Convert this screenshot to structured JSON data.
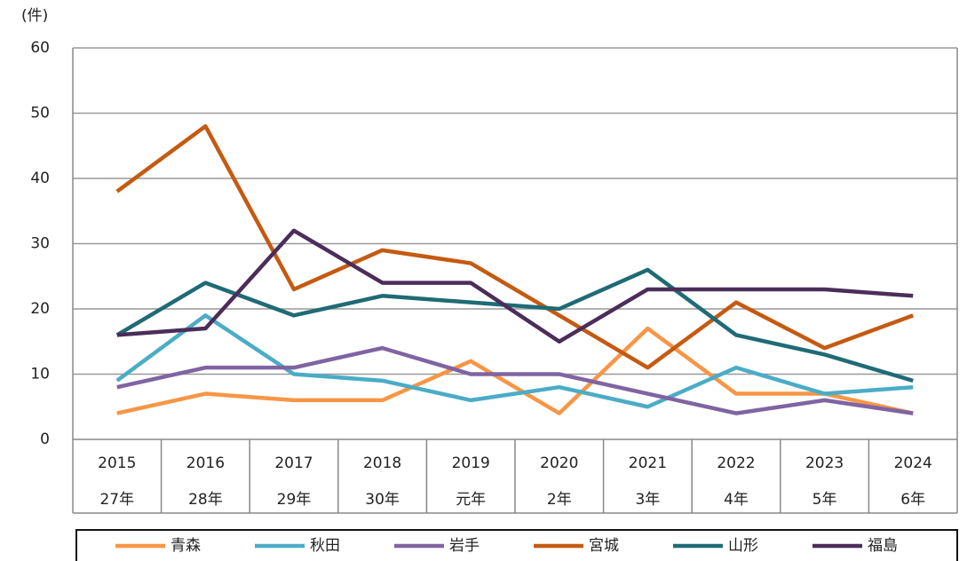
{
  "chart_data": {
    "type": "line",
    "y_unit_label": "(件)",
    "categories": [
      [
        "2015",
        "27年"
      ],
      [
        "2016",
        "28年"
      ],
      [
        "2017",
        "29年"
      ],
      [
        "2018",
        "30年"
      ],
      [
        "2019",
        "元年"
      ],
      [
        "2020",
        "2年"
      ],
      [
        "2021",
        "3年"
      ],
      [
        "2022",
        "4年"
      ],
      [
        "2023",
        "5年"
      ],
      [
        "2024",
        "6年"
      ]
    ],
    "series": [
      {
        "name": "青森",
        "color": "#f79646",
        "values": [
          4,
          7,
          6,
          6,
          12,
          4,
          17,
          7,
          7,
          4
        ]
      },
      {
        "name": "秋田",
        "color": "#4bacc6",
        "values": [
          9,
          19,
          10,
          9,
          6,
          8,
          5,
          11,
          7,
          8
        ]
      },
      {
        "name": "岩手",
        "color": "#8064a2",
        "values": [
          8,
          11,
          11,
          14,
          10,
          10,
          7,
          4,
          6,
          4
        ]
      },
      {
        "name": "宮城",
        "color": "#c55a11",
        "values": [
          38,
          48,
          23,
          29,
          27,
          19,
          11,
          21,
          14,
          19
        ]
      },
      {
        "name": "山形",
        "color": "#1f6b75",
        "values": [
          16,
          24,
          19,
          22,
          21,
          20,
          26,
          16,
          13,
          9
        ]
      },
      {
        "name": "福島",
        "color": "#4b2d5a",
        "values": [
          16,
          17,
          32,
          24,
          24,
          15,
          23,
          23,
          23,
          22
        ]
      }
    ],
    "ylim": [
      0,
      60
    ],
    "yticks": [
      0,
      10,
      20,
      30,
      40,
      50,
      60
    ],
    "grid": true,
    "legend": "bottom"
  }
}
